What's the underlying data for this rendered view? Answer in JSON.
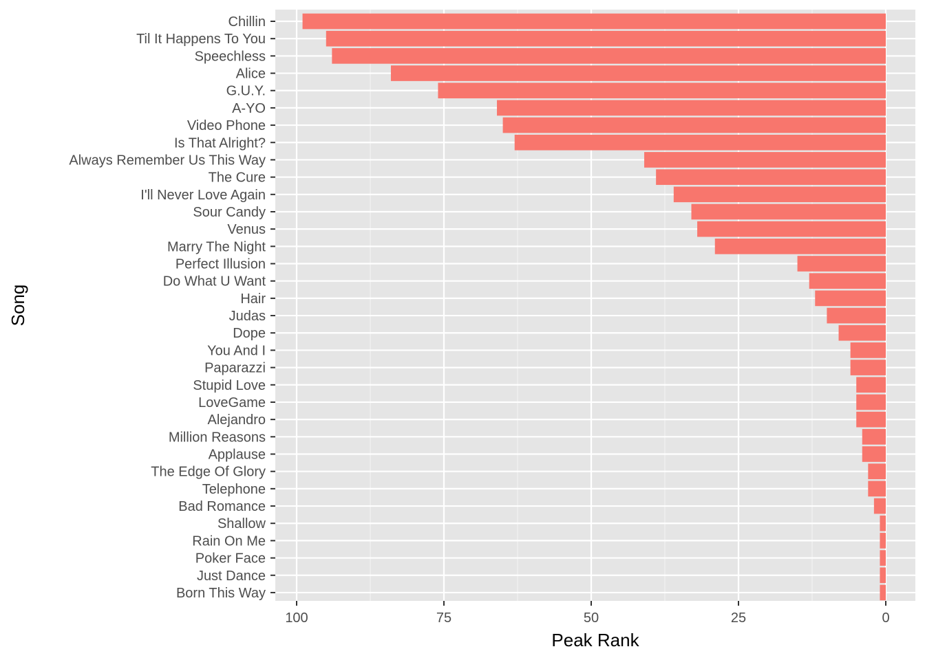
{
  "chart_data": {
    "type": "bar",
    "orientation": "horizontal",
    "xlabel": "Peak Rank",
    "ylabel": "Song",
    "x_reversed": true,
    "xlim": [
      0,
      100
    ],
    "x_ticks": [
      100,
      75,
      50,
      25,
      0
    ],
    "grid": true,
    "legend": "none",
    "bar_color": "#F8766D",
    "panel_color": "#E5E5E5",
    "categories": [
      "Chillin",
      "Til It Happens To You",
      "Speechless",
      "Alice",
      "G.U.Y.",
      "A-YO",
      "Video Phone",
      "Is That Alright?",
      "Always Remember Us This Way",
      "The Cure",
      "I'll Never Love Again",
      "Sour Candy",
      "Venus",
      "Marry The Night",
      "Perfect Illusion",
      "Do What U Want",
      "Hair",
      "Judas",
      "Dope",
      "You And I",
      "Paparazzi",
      "Stupid Love",
      "LoveGame",
      "Alejandro",
      "Million Reasons",
      "Applause",
      "The Edge Of Glory",
      "Telephone",
      "Bad Romance",
      "Shallow",
      "Rain On Me",
      "Poker Face",
      "Just Dance",
      "Born This Way"
    ],
    "values": [
      99,
      95,
      94,
      84,
      76,
      66,
      65,
      63,
      41,
      39,
      36,
      33,
      32,
      29,
      15,
      13,
      12,
      10,
      8,
      6,
      6,
      5,
      5,
      5,
      4,
      4,
      3,
      3,
      2,
      1,
      1,
      1,
      1,
      1
    ]
  }
}
